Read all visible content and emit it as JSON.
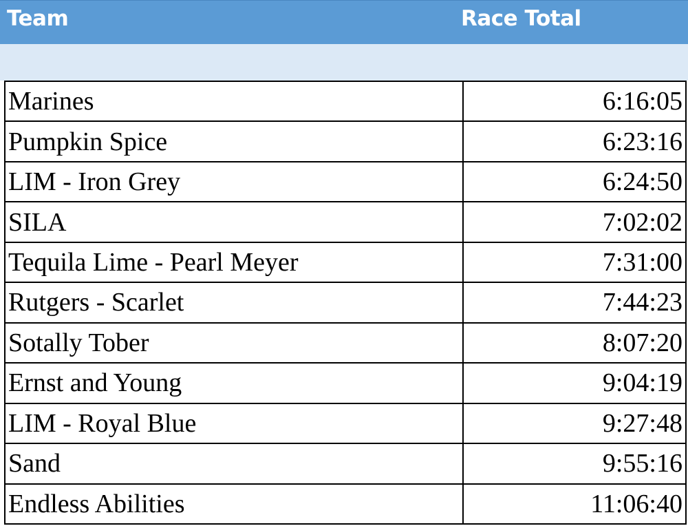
{
  "header": {
    "team_label": "Team",
    "total_label": "Race Total",
    "background_color": "#5b9bd5",
    "band_color": "#dce9f6"
  },
  "rows": [
    {
      "team": "Marines",
      "total": "6:16:05"
    },
    {
      "team": "Pumpkin Spice",
      "total": "6:23:16"
    },
    {
      "team": "LIM - Iron Grey",
      "total": "6:24:50"
    },
    {
      "team": "SILA",
      "total": "7:02:02"
    },
    {
      "team": "Tequila Lime - Pearl Meyer",
      "total": "7:31:00"
    },
    {
      "team": "Rutgers - Scarlet",
      "total": "7:44:23"
    },
    {
      "team": "Sotally Tober",
      "total": "8:07:20"
    },
    {
      "team": "Ernst and Young",
      "total": "9:04:19"
    },
    {
      "team": "LIM - Royal Blue",
      "total": "9:27:48"
    },
    {
      "team": "Sand",
      "total": "9:55:16"
    },
    {
      "team": "Endless Abilities",
      "total": "11:06:40"
    }
  ]
}
